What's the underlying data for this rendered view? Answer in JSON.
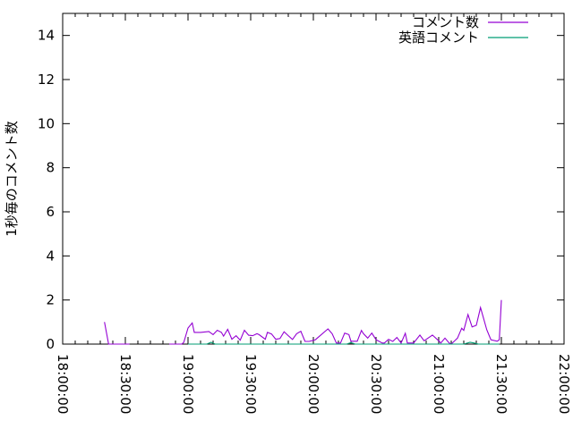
{
  "chart_data": {
    "type": "line",
    "title": "",
    "xlabel": "",
    "ylabel": "1秒毎のコメント数",
    "xlim": [
      "18:00:00",
      "22:00:00"
    ],
    "ylim": [
      0,
      15
    ],
    "xticks": [
      "18:00:00",
      "18:30:00",
      "19:00:00",
      "19:30:00",
      "20:00:00",
      "20:30:00",
      "21:00:00",
      "21:30:00",
      "22:00:00"
    ],
    "yticks": [
      0,
      2,
      4,
      6,
      8,
      10,
      12,
      14
    ],
    "grid": false,
    "legend_position": "top-right",
    "series": [
      {
        "name": "コメント数",
        "color": "#9400d3",
        "points": [
          [
            "18:20",
            1.0
          ],
          [
            "18:22",
            0
          ],
          [
            "18:28",
            0
          ],
          [
            "18:32",
            0
          ],
          [
            "18:34",
            null
          ],
          [
            "18:51",
            0
          ],
          [
            "18:57",
            0
          ],
          [
            "18:58",
            0.08
          ],
          [
            "19:00",
            0.73
          ],
          [
            "19:02",
            0.96
          ],
          [
            "19:03",
            0.53
          ],
          [
            "19:06",
            0.53
          ],
          [
            "19:10",
            0.57
          ],
          [
            "19:12",
            0.43
          ],
          [
            "19:14",
            0.63
          ],
          [
            "19:16",
            0.53
          ],
          [
            "19:17",
            0.36
          ],
          [
            "19:19",
            0.67
          ],
          [
            "19:21",
            0.22
          ],
          [
            "19:23",
            0.38
          ],
          [
            "19:25",
            0.18
          ],
          [
            "19:27",
            0.63
          ],
          [
            "19:29",
            0.4
          ],
          [
            "19:31",
            0.38
          ],
          [
            "19:33",
            0.47
          ],
          [
            "19:34",
            0.43
          ],
          [
            "19:37",
            0.22
          ],
          [
            "19:38",
            0.53
          ],
          [
            "19:40",
            0.46
          ],
          [
            "19:42",
            0.22
          ],
          [
            "19:44",
            0.25
          ],
          [
            "19:46",
            0.56
          ],
          [
            "19:48",
            0.38
          ],
          [
            "19:50",
            0.21
          ],
          [
            "19:52",
            0.47
          ],
          [
            "19:54",
            0.58
          ],
          [
            "19:56",
            0.12
          ],
          [
            "19:58",
            0.12
          ],
          [
            "20:01",
            0.2
          ],
          [
            "20:07",
            0.69
          ],
          [
            "20:09",
            0.47
          ],
          [
            "20:11",
            0.05
          ],
          [
            "20:13",
            0.05
          ],
          [
            "20:15",
            0.5
          ],
          [
            "20:17",
            0.43
          ],
          [
            "20:18",
            0.13
          ],
          [
            "20:21",
            0.13
          ],
          [
            "20:23",
            0.62
          ],
          [
            "20:24",
            0.47
          ],
          [
            "20:26",
            0.27
          ],
          [
            "20:28",
            0.5
          ],
          [
            "20:30",
            0.2
          ],
          [
            "20:33",
            0.05
          ],
          [
            "20:34",
            0.05
          ],
          [
            "20:36",
            0.22
          ],
          [
            "20:38",
            0.12
          ],
          [
            "20:40",
            0.3
          ],
          [
            "20:42",
            0.05
          ],
          [
            "20:44",
            0.49
          ],
          [
            "20:45",
            0.05
          ],
          [
            "20:48",
            0.05
          ],
          [
            "20:51",
            0.41
          ],
          [
            "20:53",
            0.15
          ],
          [
            "20:57",
            0.41
          ],
          [
            "21:00",
            0.15
          ],
          [
            "21:01",
            0.05
          ],
          [
            "21:03",
            0.27
          ],
          [
            "21:05",
            0.05
          ],
          [
            "21:06",
            0
          ],
          [
            "21:09",
            0.27
          ],
          [
            "21:11",
            0.72
          ],
          [
            "21:12",
            0.62
          ],
          [
            "21:14",
            1.34
          ],
          [
            "21:16",
            0.78
          ],
          [
            "21:18",
            0.85
          ],
          [
            "21:20",
            1.66
          ],
          [
            "21:23",
            0.65
          ],
          [
            "21:25",
            0.2
          ],
          [
            "21:28",
            0.13
          ],
          [
            "21:29",
            0.2
          ],
          [
            "21:30",
            2.0
          ]
        ]
      },
      {
        "name": "英語コメント",
        "color": "#009e73",
        "points": [
          [
            "19:00",
            0
          ],
          [
            "19:09",
            0
          ],
          [
            "19:11",
            0.08
          ],
          [
            "19:13",
            0
          ],
          [
            "20:16",
            0
          ],
          [
            "20:18",
            0.07
          ],
          [
            "20:20",
            0
          ],
          [
            "21:12",
            0
          ],
          [
            "21:15",
            0.08
          ],
          [
            "21:17",
            0.05
          ],
          [
            "21:19",
            0
          ],
          [
            "21:29",
            0
          ]
        ]
      }
    ]
  }
}
